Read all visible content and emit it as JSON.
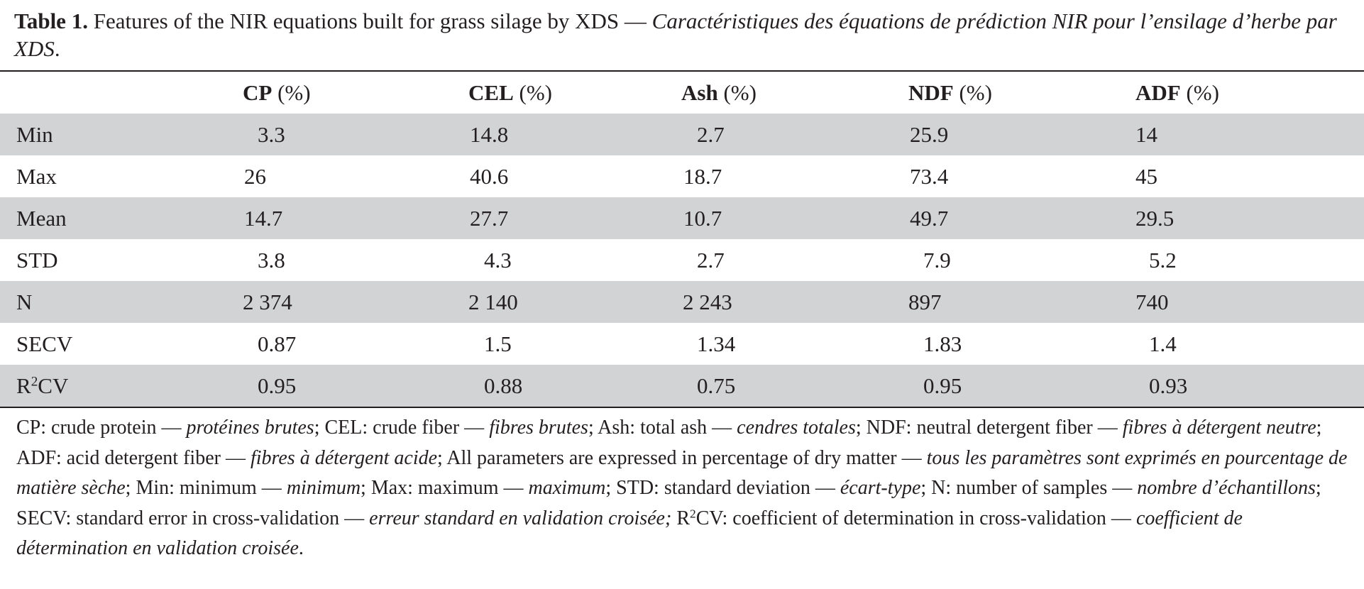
{
  "caption": {
    "label": "Table 1.",
    "english": "Features of the NIR equations built for grass silage by XDS",
    "dash": "—",
    "french": "Caractéristiques des équations de prédiction NIR pour l’ensilage d’herbe par XDS",
    "end": "."
  },
  "table": {
    "columns": [
      {
        "abbr": "CP",
        "unit": "(%)"
      },
      {
        "abbr": "CEL",
        "unit": "(%)"
      },
      {
        "abbr": "Ash",
        "unit": "(%)"
      },
      {
        "abbr": "NDF",
        "unit": "(%)"
      },
      {
        "abbr": "ADF",
        "unit": "(%)"
      }
    ],
    "rows": [
      {
        "label": "Min",
        "values": [
          "3.3",
          "14.8",
          "2.7",
          "25.9",
          "14"
        ]
      },
      {
        "label": "Max",
        "values": [
          "26",
          "40.6",
          "18.7",
          "73.4",
          "45"
        ]
      },
      {
        "label": "Mean",
        "values": [
          "14.7",
          "27.7",
          "10.7",
          "49.7",
          "29.5"
        ]
      },
      {
        "label": "STD",
        "values": [
          "3.8",
          "4.3",
          "2.7",
          "7.9",
          "5.2"
        ]
      },
      {
        "label": "N",
        "values": [
          "2 374",
          "2 140",
          "2 243",
          "897",
          "740"
        ]
      },
      {
        "label": "SECV",
        "values": [
          "0.87",
          "1.5",
          "1.34",
          "1.83",
          "1.4"
        ]
      },
      {
        "label_base": "R",
        "label_sup": "2",
        "label_rest": "CV",
        "values": [
          "0.95",
          "0.88",
          "0.75",
          "0.95",
          "0.93"
        ]
      }
    ]
  },
  "notes": [
    {
      "en": "CP: crude protein — ",
      "fr": "protéines brutes"
    },
    {
      "en": "; CEL: crude fiber — ",
      "fr": "fibres brutes"
    },
    {
      "en": "; Ash: total ash — ",
      "fr": "cendres totales"
    },
    {
      "en": "; NDF: neutral detergent fiber — ",
      "fr": "fibres à détergent neutre"
    },
    {
      "en": "; ADF: acid detergent fiber — ",
      "fr": "fibres à détergent acide"
    },
    {
      "en": "; All parameters are expressed in percentage of dry matter — ",
      "fr": "tous les paramètres sont exprimés en pourcentage de matière sèche"
    },
    {
      "en": "; Min: minimum — ",
      "fr": "minimum"
    },
    {
      "en": "; Max: maximum — ",
      "fr": "maximum"
    },
    {
      "en": "; STD: standard deviation — ",
      "fr": "écart-type"
    },
    {
      "en": "; N: number of samples — ",
      "fr": "nombre d’échantillons"
    },
    {
      "en": "; SECV: standard error in cross-validation — ",
      "fr": "erreur standard en validation croisée;"
    }
  ],
  "notes_r2": {
    "base": "R",
    "sup": "2",
    "en": "CV: coefficient of determination in cross-validation — ",
    "fr": "coefficient de détermination en validation croisée",
    "end": "."
  }
}
